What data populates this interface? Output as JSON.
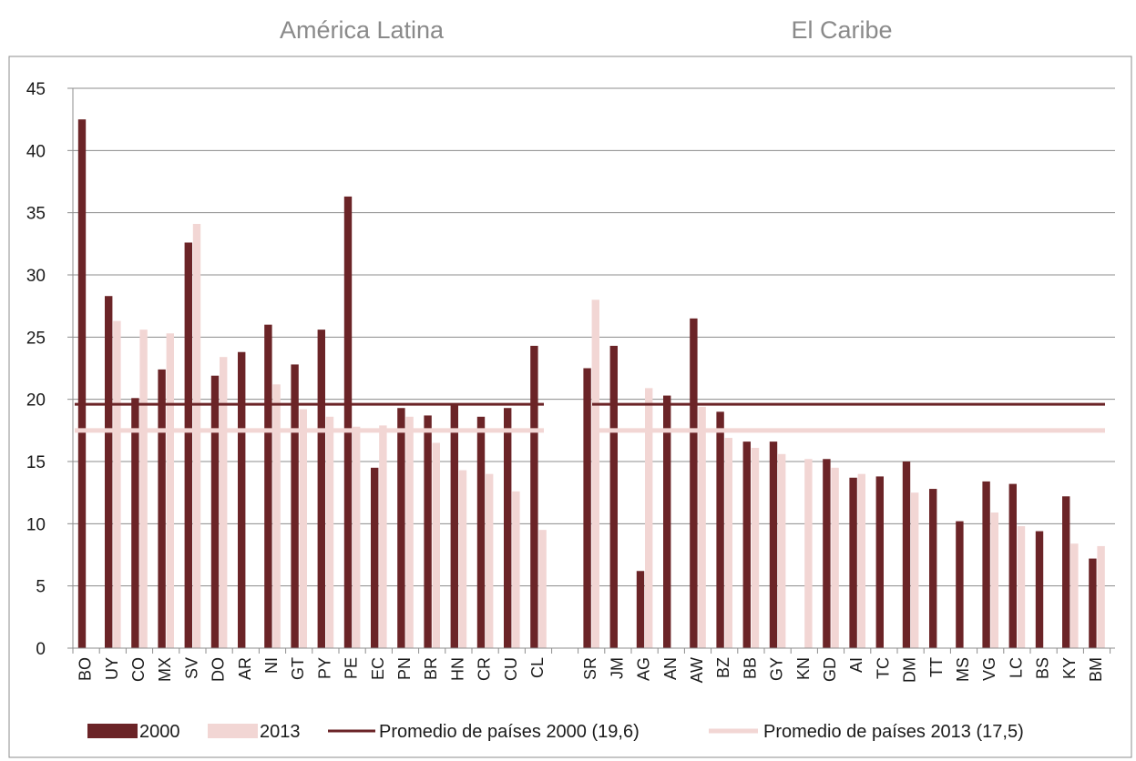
{
  "chart_data": {
    "type": "bar",
    "region_titles": [
      "América Latina",
      "El Caribe"
    ],
    "y_ticks": [
      "0",
      "5",
      "10",
      "15",
      "20",
      "25",
      "30",
      "35",
      "40",
      "45"
    ],
    "ylim": [
      0,
      45
    ],
    "grid": true,
    "legend_position": "bottom",
    "groups": [
      {
        "title": "América Latina",
        "categories": [
          "BO",
          "UY",
          "CO",
          "MX",
          "SV",
          "DO",
          "AR",
          "NI",
          "GT",
          "PY",
          "PE",
          "EC",
          "PN",
          "BR",
          "HN",
          "CR",
          "CU",
          "CL"
        ],
        "series": [
          {
            "name": "2000",
            "values": [
              42.5,
              28.3,
              20.1,
              22.4,
              32.6,
              21.9,
              23.8,
              26.0,
              22.8,
              25.6,
              36.3,
              14.5,
              19.3,
              18.7,
              19.6,
              18.6,
              19.3,
              24.3
            ]
          },
          {
            "name": "2013",
            "values": [
              null,
              26.3,
              25.6,
              25.3,
              34.1,
              23.4,
              null,
              21.2,
              19.2,
              18.6,
              17.8,
              17.9,
              18.6,
              16.5,
              14.3,
              14.0,
              12.6,
              9.5
            ]
          }
        ]
      },
      {
        "title": "El Caribe",
        "categories": [
          "SR",
          "JM",
          "AG",
          "AN",
          "AW",
          "BZ",
          "BB",
          "GY",
          "KN",
          "GD",
          "AI",
          "TC",
          "DM",
          "TT",
          "MS",
          "VG",
          "LC",
          "BS",
          "KY",
          "BM"
        ],
        "series": [
          {
            "name": "2000",
            "values": [
              22.5,
              24.3,
              6.2,
              20.3,
              26.5,
              19.0,
              16.6,
              16.6,
              null,
              15.2,
              13.7,
              13.8,
              15.0,
              12.8,
              10.2,
              13.4,
              13.2,
              9.4,
              12.2,
              7.2
            ]
          },
          {
            "name": "2013",
            "values": [
              28.0,
              null,
              20.9,
              null,
              19.4,
              16.9,
              16.1,
              15.6,
              15.2,
              14.5,
              14.0,
              null,
              12.5,
              null,
              null,
              10.9,
              9.8,
              null,
              8.4,
              8.2
            ]
          }
        ]
      }
    ],
    "reference_lines": [
      {
        "name": "Promedio de países 2000 (19,6)",
        "value": 19.6
      },
      {
        "name": "Promedio de países 2013 (17,5)",
        "value": 17.5
      }
    ],
    "legend": [
      "2000",
      "2013",
      "Promedio de países 2000 (19,6)",
      "Promedio de países 2013 (17,5)"
    ],
    "colors": {
      "series_2000": "#6b2427",
      "series_2013": "#f2d6d4",
      "avg_2000": "#6b2427",
      "avg_2013": "#f2d6d4",
      "grid": "#8c8c8c",
      "axis": "#8c8c8c",
      "frame": "#8c8c8c",
      "title": "#8a8a8a",
      "text": "#1a1a1a"
    }
  }
}
